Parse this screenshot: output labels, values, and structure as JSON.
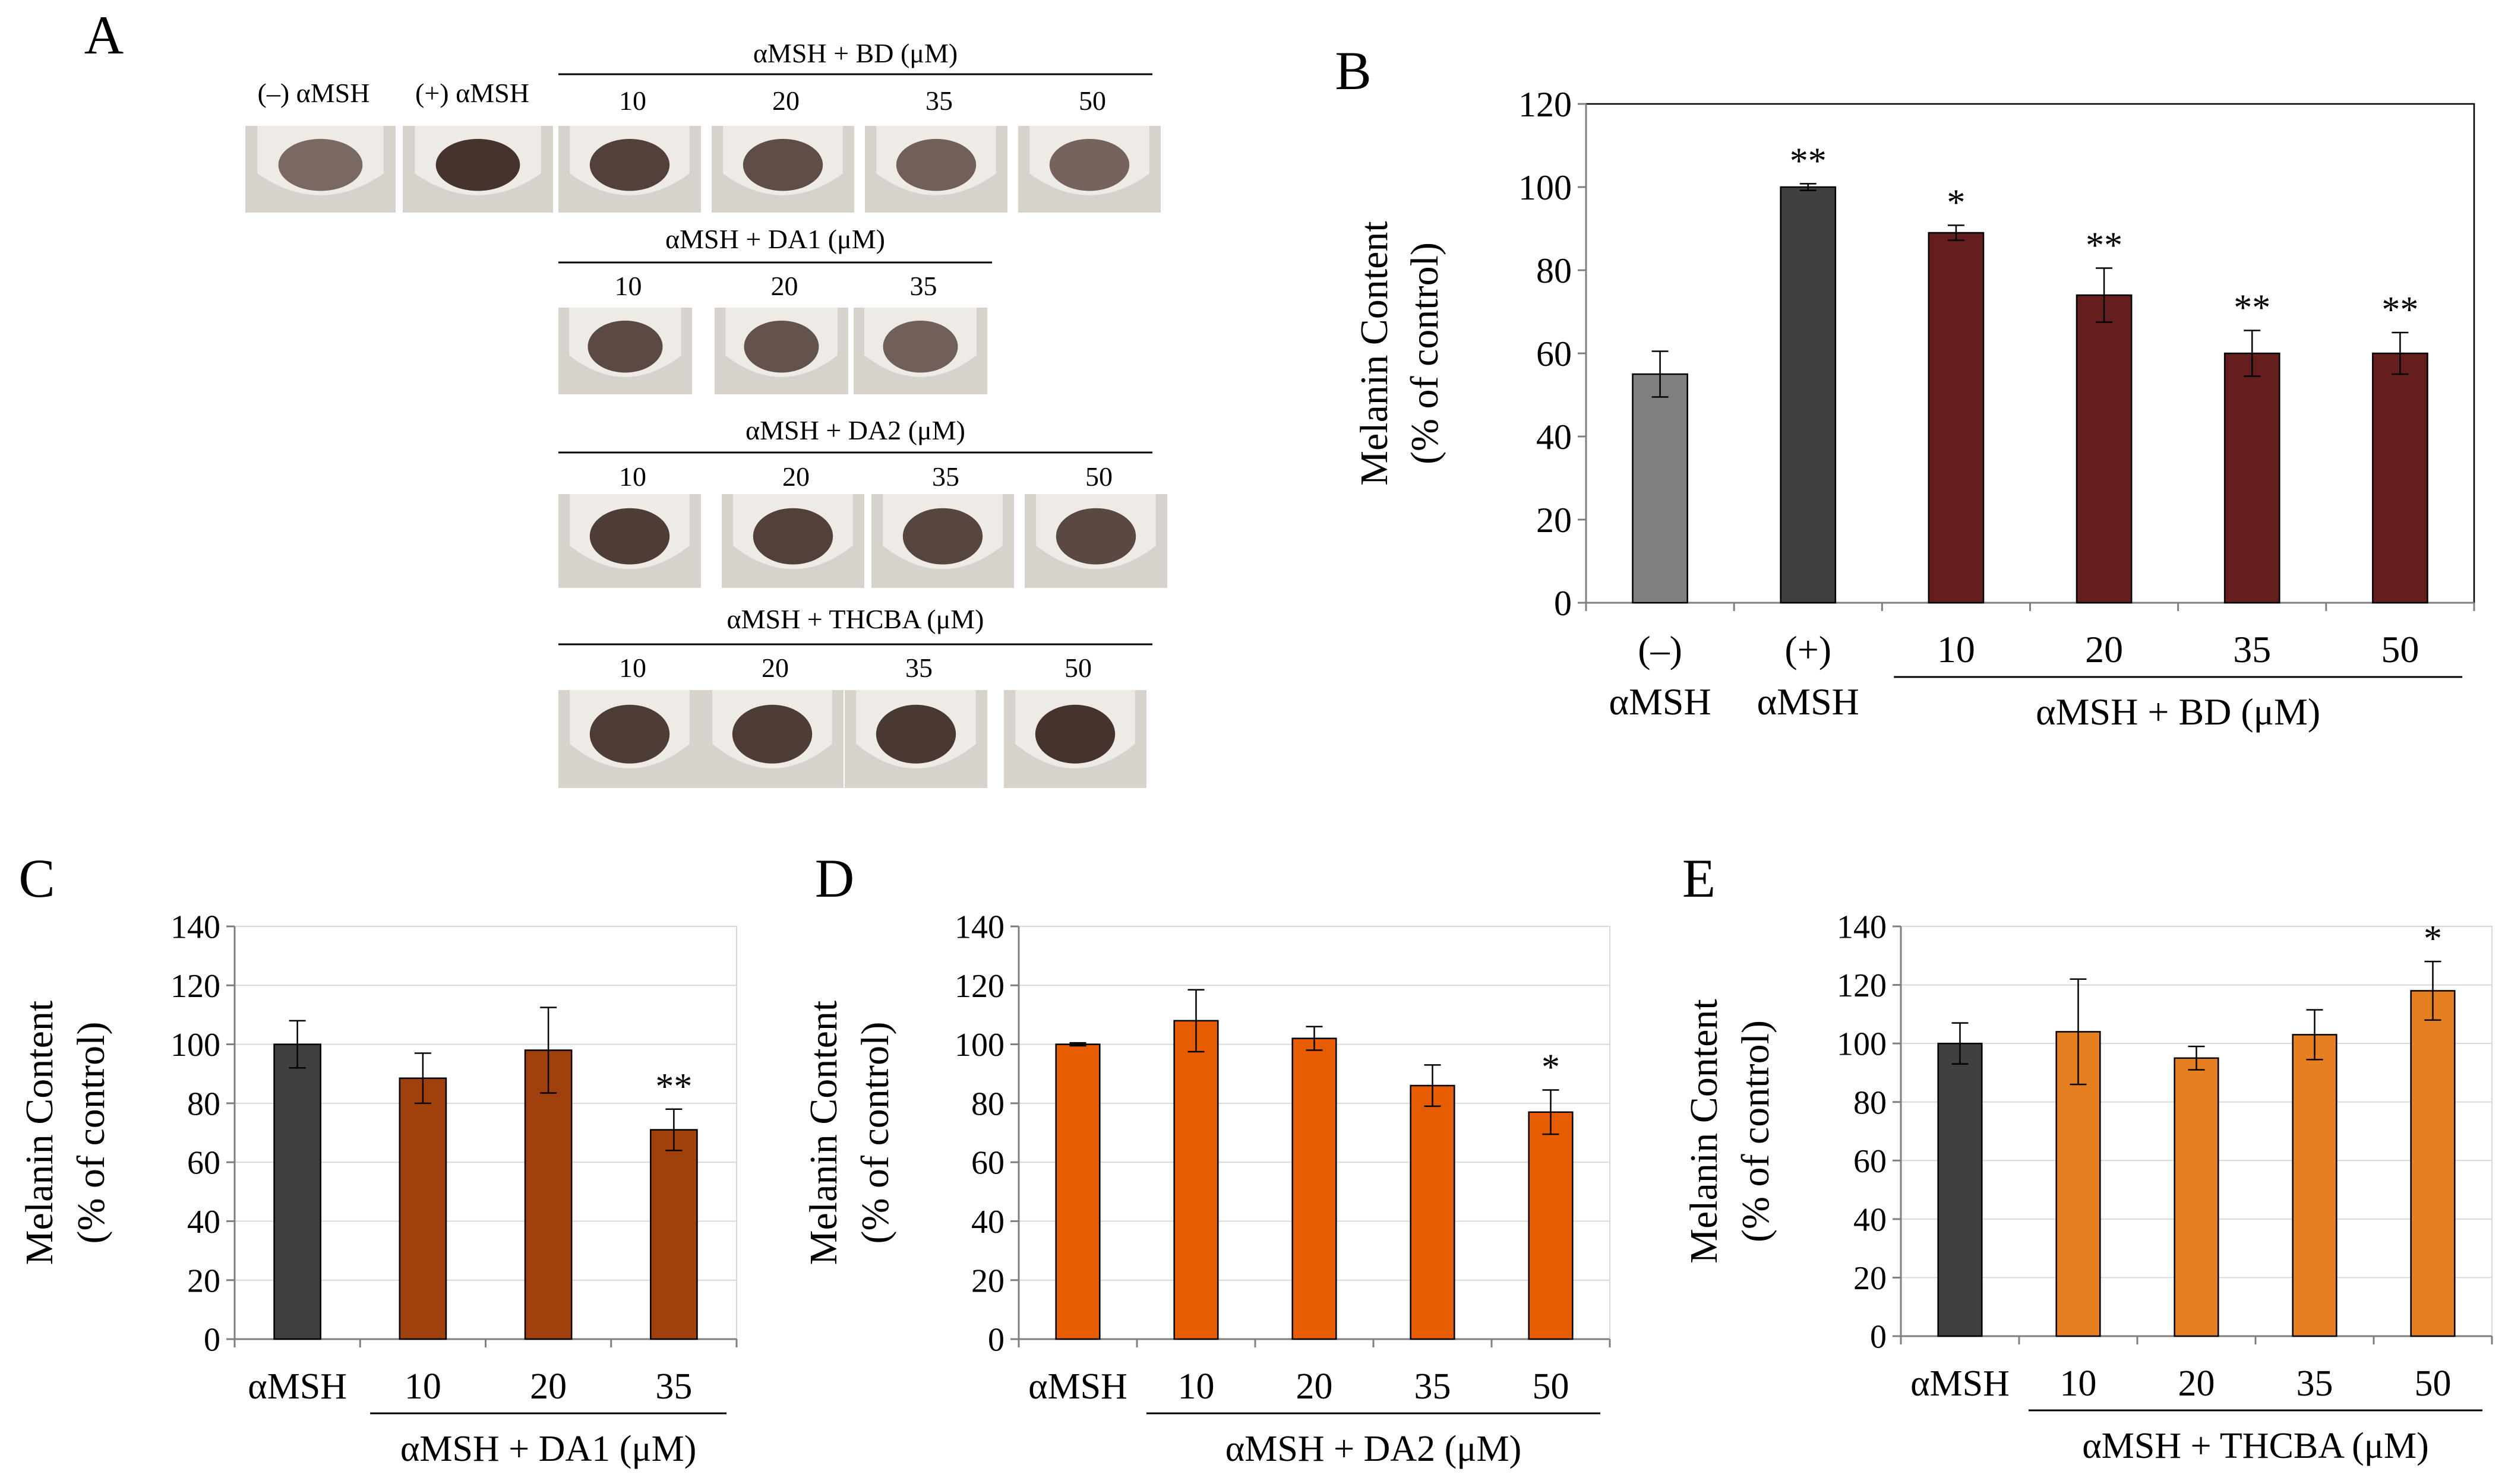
{
  "colors": {
    "control_neg": "#7f7f7f",
    "control_pos": "#404040",
    "bd": "#641e1e",
    "da1": "#a0410d",
    "da2": "#e65c00",
    "thcba": "#e67e22",
    "axis": "#000000",
    "grid": "#d9d9d9",
    "frame": "#7f7f7f"
  },
  "panel_a": {
    "letter": "A",
    "labels": {
      "neg": "(–) αMSH",
      "pos": "(+) αMSH"
    },
    "rows": [
      {
        "title": "αMSH + BD (μM)",
        "concentrations": [
          "10",
          "20",
          "35",
          "50"
        ]
      },
      {
        "title": "αMSH + DA1 (μM)",
        "concentrations": [
          "10",
          "20",
          "35"
        ]
      },
      {
        "title": "αMSH + DA2 (μM)",
        "concentrations": [
          "10",
          "20",
          "35",
          "50"
        ]
      },
      {
        "title": "αMSH + THCBA (μM)",
        "concentrations": [
          "10",
          "20",
          "35",
          "50"
        ]
      }
    ]
  },
  "chart_data": [
    {
      "panel": "B",
      "type": "bar",
      "ylabel": "Melanin Content",
      "ylabel2": "(% of control)",
      "ylim": [
        0,
        120
      ],
      "yticks": [
        0,
        20,
        40,
        60,
        80,
        100,
        120
      ],
      "grid": false,
      "categories": [
        [
          "(–)",
          "αMSH"
        ],
        [
          "(+)",
          "αMSH"
        ],
        [
          "10"
        ],
        [
          "20"
        ],
        [
          "35"
        ],
        [
          "50"
        ]
      ],
      "values": [
        55,
        100,
        89,
        74,
        60,
        60
      ],
      "errors": [
        5.5,
        0.8,
        1.8,
        6.5,
        5.5,
        5
      ],
      "significance": [
        "",
        "**",
        "*",
        "**",
        "**",
        "**"
      ],
      "bar_colors": [
        "control_neg",
        "control_pos",
        "bd",
        "bd",
        "bd",
        "bd"
      ],
      "group_label": "αMSH + BD (μM)",
      "group_range": [
        2,
        5
      ]
    },
    {
      "panel": "C",
      "type": "bar",
      "ylabel": "Melanin Content",
      "ylabel2": "(% of control)",
      "ylim": [
        0,
        140
      ],
      "yticks": [
        0,
        20,
        40,
        60,
        80,
        100,
        120,
        140
      ],
      "grid": true,
      "categories": [
        [
          "αMSH"
        ],
        [
          "10"
        ],
        [
          "20"
        ],
        [
          "35"
        ]
      ],
      "values": [
        100,
        88.5,
        98,
        71
      ],
      "errors": [
        8,
        8.5,
        14.5,
        7
      ],
      "significance": [
        "",
        "",
        "",
        "**"
      ],
      "bar_colors": [
        "control_pos",
        "da1",
        "da1",
        "da1"
      ],
      "group_label": "αMSH + DA1 (μM)",
      "group_range": [
        1,
        3
      ]
    },
    {
      "panel": "D",
      "type": "bar",
      "ylabel": "Melanin Content",
      "ylabel2": "(% of control)",
      "ylim": [
        0,
        140
      ],
      "yticks": [
        0,
        20,
        40,
        60,
        80,
        100,
        120,
        140
      ],
      "grid": true,
      "categories": [
        [
          "αMSH"
        ],
        [
          "10"
        ],
        [
          "20"
        ],
        [
          "35"
        ],
        [
          "50"
        ]
      ],
      "values": [
        100,
        108,
        102,
        86,
        77
      ],
      "errors": [
        0.5,
        10.5,
        4,
        7,
        7.5
      ],
      "significance": [
        "",
        "",
        "",
        "",
        "*"
      ],
      "bar_colors": [
        "da2",
        "da2",
        "da2",
        "da2",
        "da2"
      ],
      "group_label": "αMSH + DA2 (μM)",
      "group_range": [
        1,
        4
      ]
    },
    {
      "panel": "E",
      "type": "bar",
      "ylabel": "Melanin Content",
      "ylabel2": "(% of control)",
      "ylim": [
        0,
        140
      ],
      "yticks": [
        0,
        20,
        40,
        60,
        80,
        100,
        120,
        140
      ],
      "grid": true,
      "categories": [
        [
          "αMSH"
        ],
        [
          "10"
        ],
        [
          "20"
        ],
        [
          "35"
        ],
        [
          "50"
        ]
      ],
      "values": [
        100,
        104,
        95,
        103,
        118
      ],
      "errors": [
        7,
        18,
        4,
        8.5,
        10
      ],
      "significance": [
        "",
        "",
        "",
        "",
        "*"
      ],
      "bar_colors": [
        "control_pos",
        "thcba",
        "thcba",
        "thcba",
        "thcba"
      ],
      "group_label": "αMSH +  THCBA (μM)",
      "group_range": [
        1,
        4
      ]
    }
  ]
}
